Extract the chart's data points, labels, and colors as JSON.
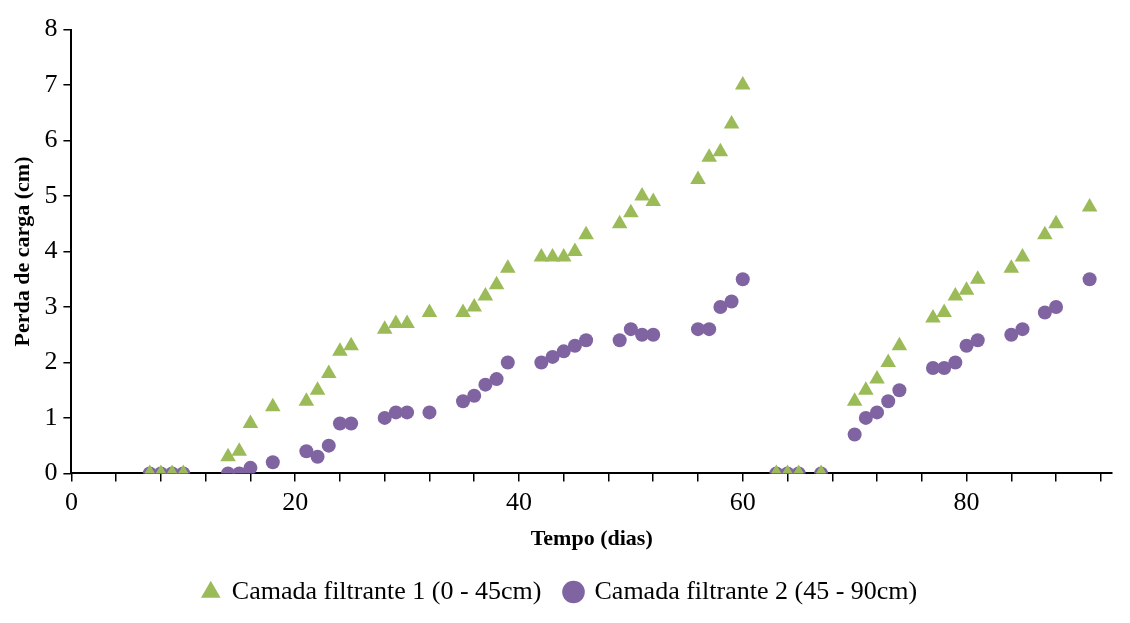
{
  "chart_data": {
    "type": "scatter",
    "xlabel": "Tempo (dias)",
    "ylabel": "Perda de carga (cm)",
    "xlim": [
      0,
      93
    ],
    "ylim": [
      0,
      8
    ],
    "xticks": [
      0,
      {
        "value": 4,
        "label": null
      },
      {
        "value": 8,
        "label": null
      },
      {
        "value": 12,
        "label": null
      },
      {
        "value": 16,
        "label": null
      },
      20,
      {
        "value": 24,
        "label": null
      },
      {
        "value": 28,
        "label": null
      },
      {
        "value": 32,
        "label": null
      },
      {
        "value": 36,
        "label": null
      },
      40,
      {
        "value": 44,
        "label": null
      },
      {
        "value": 48,
        "label": null
      },
      {
        "value": 52,
        "label": null
      },
      {
        "value": 56,
        "label": null
      },
      60,
      {
        "value": 64,
        "label": null
      },
      {
        "value": 68,
        "label": null
      },
      {
        "value": 72,
        "label": null
      },
      {
        "value": 76,
        "label": null
      },
      80,
      {
        "value": 84,
        "label": null
      },
      {
        "value": 88,
        "label": null
      },
      {
        "value": 92,
        "label": null
      }
    ],
    "yticks": [
      0,
      1,
      2,
      3,
      4,
      5,
      6,
      7,
      8
    ],
    "grid": false,
    "legend": "bottom",
    "x": [
      7,
      8,
      9,
      10,
      14,
      15,
      16,
      18,
      21,
      22,
      23,
      24,
      25,
      28,
      29,
      30,
      32,
      35,
      36,
      37,
      38,
      39,
      42,
      43,
      44,
      45,
      46,
      49,
      50,
      51,
      52,
      56,
      57,
      58,
      59,
      60,
      63,
      64,
      65,
      67,
      70,
      71,
      72,
      73,
      74,
      77,
      78,
      79,
      80,
      81,
      84,
      85,
      87,
      88,
      91
    ],
    "series": [
      {
        "name": "Camada filtrante 1 (0 - 45cm)",
        "color": "#9bbb59",
        "marker": "triangle",
        "values": [
          0,
          0,
          0,
          0,
          0.3,
          0.4,
          0.9,
          1.2,
          1.3,
          1.5,
          1.8,
          2.2,
          2.3,
          2.6,
          2.7,
          2.7,
          2.9,
          2.9,
          3.0,
          3.2,
          3.4,
          3.7,
          3.9,
          3.9,
          3.9,
          4.0,
          4.3,
          4.5,
          4.7,
          5.0,
          4.9,
          5.3,
          5.7,
          5.8,
          6.3,
          7.0,
          0,
          0,
          0,
          0,
          1.3,
          1.5,
          1.7,
          2.0,
          2.3,
          2.8,
          2.9,
          3.2,
          3.3,
          3.5,
          3.7,
          3.9,
          4.3,
          4.5,
          4.8
        ]
      },
      {
        "name": "Camada filtrante 2 (45 - 90cm)",
        "color": "#8064a2",
        "marker": "circle",
        "values": [
          0,
          0,
          0,
          0,
          0,
          0,
          0.1,
          0.2,
          0.4,
          0.3,
          0.5,
          0.9,
          0.9,
          1.0,
          1.1,
          1.1,
          1.1,
          1.3,
          1.4,
          1.6,
          1.7,
          2.0,
          2.0,
          2.1,
          2.2,
          2.3,
          2.4,
          2.4,
          2.6,
          2.5,
          2.5,
          2.6,
          2.6,
          3.0,
          3.1,
          3.5,
          0,
          0,
          0,
          0,
          0.7,
          1.0,
          1.1,
          1.3,
          1.5,
          1.9,
          1.9,
          2.0,
          2.3,
          2.4,
          2.5,
          2.6,
          2.9,
          3.0,
          3.5
        ]
      }
    ]
  }
}
